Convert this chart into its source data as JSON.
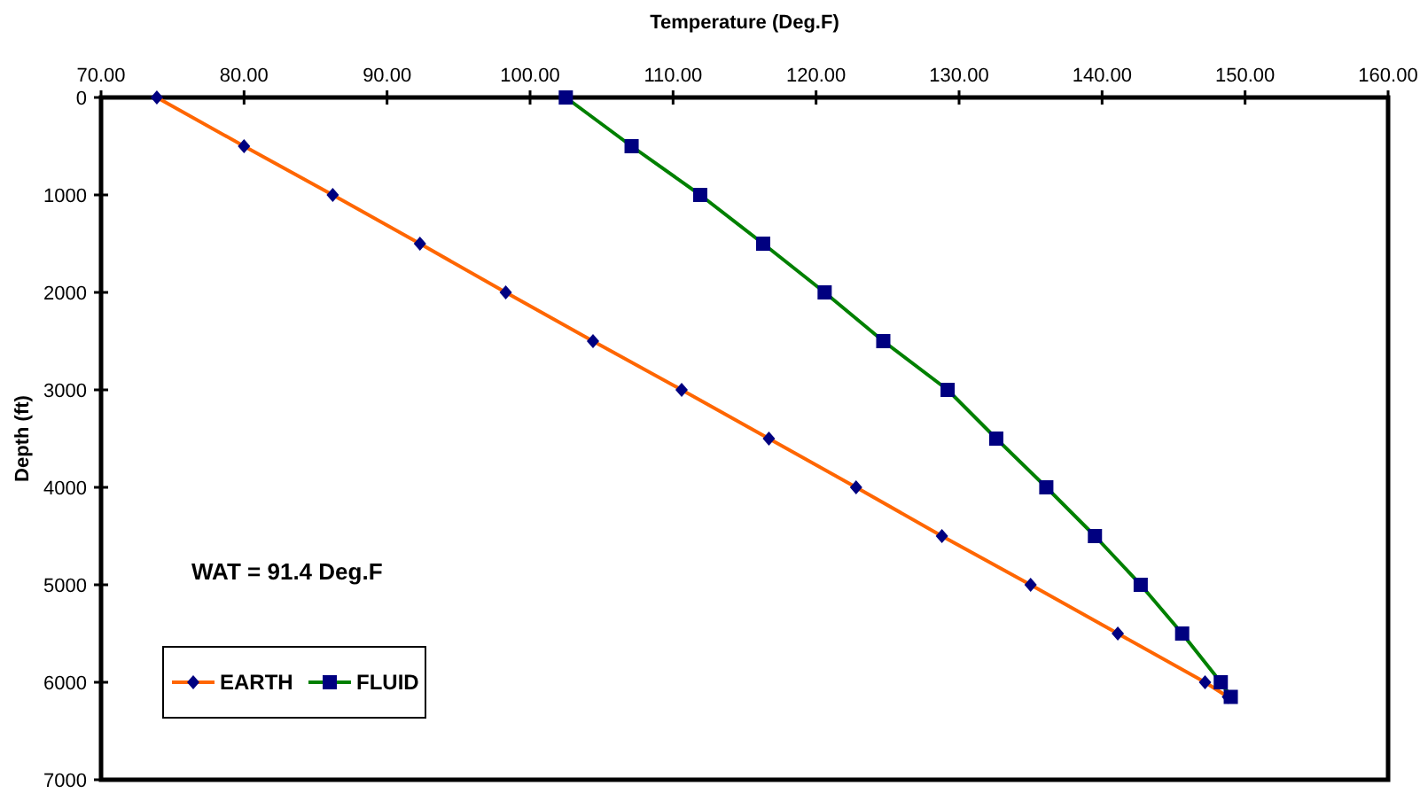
{
  "chart_data": {
    "type": "line",
    "xlabel": "Temperature (Deg.F)",
    "ylabel": "Depth (ft)",
    "annotations": [
      "WAT = 91.4 Deg.F"
    ],
    "xlim": [
      70,
      160
    ],
    "xticks": [
      {
        "value": 70,
        "label": "70.00"
      },
      {
        "value": 80,
        "label": "80.00"
      },
      {
        "value": 90,
        "label": "90.00"
      },
      {
        "value": 100,
        "label": "100.00"
      },
      {
        "value": 110,
        "label": "110.00"
      },
      {
        "value": 120,
        "label": "120.00"
      },
      {
        "value": 130,
        "label": "130.00"
      },
      {
        "value": 140,
        "label": "140.00"
      },
      {
        "value": 150,
        "label": "150.00"
      },
      {
        "value": 160,
        "label": "160.00"
      }
    ],
    "ylim": [
      7000,
      0
    ],
    "yticks": [
      0,
      1000,
      2000,
      3000,
      4000,
      5000,
      6000,
      7000
    ],
    "grid": false,
    "legend": "bottom left",
    "line_style": "solid",
    "series": [
      {
        "name": "EARTH",
        "color": "#ff6600",
        "marker": "diamond",
        "x": [
          73.9,
          80.0,
          86.2,
          92.3,
          98.3,
          104.4,
          110.6,
          116.7,
          122.8,
          128.8,
          135.0,
          141.1,
          147.2,
          148.8
        ],
        "values": [
          0,
          500,
          1000,
          1500,
          2000,
          2500,
          3000,
          3500,
          4000,
          4500,
          5000,
          5500,
          6000,
          6150
        ]
      },
      {
        "name": "FLUID",
        "color": "#008000",
        "marker": "square",
        "x": [
          102.5,
          107.1,
          111.9,
          116.3,
          120.6,
          124.7,
          129.2,
          132.6,
          136.1,
          139.5,
          142.7,
          145.6,
          148.3,
          149.0
        ],
        "values": [
          0,
          500,
          1000,
          1500,
          2000,
          2500,
          3000,
          3500,
          4000,
          4500,
          5000,
          5500,
          6000,
          6150
        ]
      }
    ]
  }
}
